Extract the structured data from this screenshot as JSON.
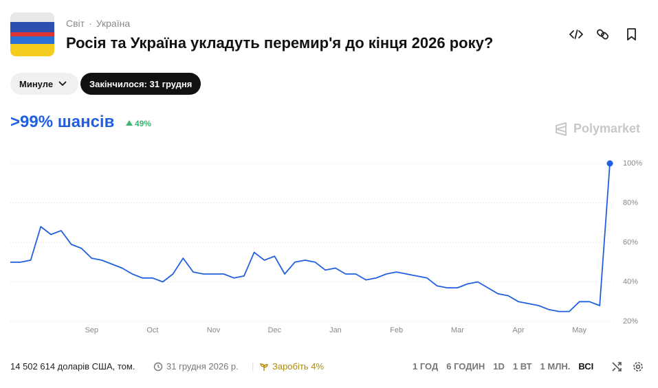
{
  "header": {
    "breadcrumb": [
      "Світ",
      "Україна"
    ],
    "title": "Росія та Україна укладуть перемир'я до кінця 2026 року?"
  },
  "filters": [
    "Минуле",
    "Закінчилося: 31 грудня"
  ],
  "probability": {
    "label": ">99% шансів",
    "change": "49%"
  },
  "brand": "Polymarket",
  "chart_data": {
    "type": "line",
    "categories": [
      null,
      null,
      null,
      null,
      null,
      null,
      null,
      null,
      "Sep",
      null,
      null,
      null,
      null,
      null,
      "Oct",
      null,
      null,
      null,
      null,
      null,
      "Nov",
      null,
      null,
      null,
      null,
      null,
      "Dec",
      null,
      null,
      null,
      null,
      null,
      "Jan",
      null,
      null,
      null,
      null,
      null,
      "Feb",
      null,
      null,
      null,
      null,
      null,
      "Mar",
      null,
      null,
      null,
      null,
      null,
      "Apr",
      null,
      null,
      null,
      null,
      null,
      "May",
      null,
      null,
      null
    ],
    "values": [
      50,
      50,
      51,
      68,
      64,
      66,
      59,
      57,
      52,
      51,
      49,
      47,
      44,
      42,
      42,
      40,
      44,
      52,
      45,
      44,
      44,
      44,
      42,
      43,
      55,
      51,
      53,
      44,
      50,
      51,
      50,
      46,
      47,
      44,
      44,
      41,
      42,
      44,
      45,
      44,
      43,
      42,
      38,
      37,
      37,
      39,
      40,
      37,
      34,
      33,
      30,
      29,
      28,
      26,
      25,
      25,
      30,
      30,
      28,
      100
    ],
    "color": "#1f5fe0",
    "ylim": [
      20,
      100
    ],
    "yticks": [
      {
        "value": 20,
        "label": "20%"
      },
      {
        "value": 40,
        "label": "40%"
      },
      {
        "value": 60,
        "label": "60%"
      },
      {
        "value": 80,
        "label": "80%"
      },
      {
        "value": 100,
        "label": "100%"
      }
    ],
    "grid": true
  },
  "footer": {
    "volume": "14 502 614 доларів США, том.",
    "end_date": "31 грудня 2026 р.",
    "reward": "Заробіть 4%",
    "ranges": [
      "1 ГОД",
      "6 ГОДИН",
      "1D",
      "1 ВТ",
      "1 МЛН.",
      "ВСІ"
    ]
  }
}
